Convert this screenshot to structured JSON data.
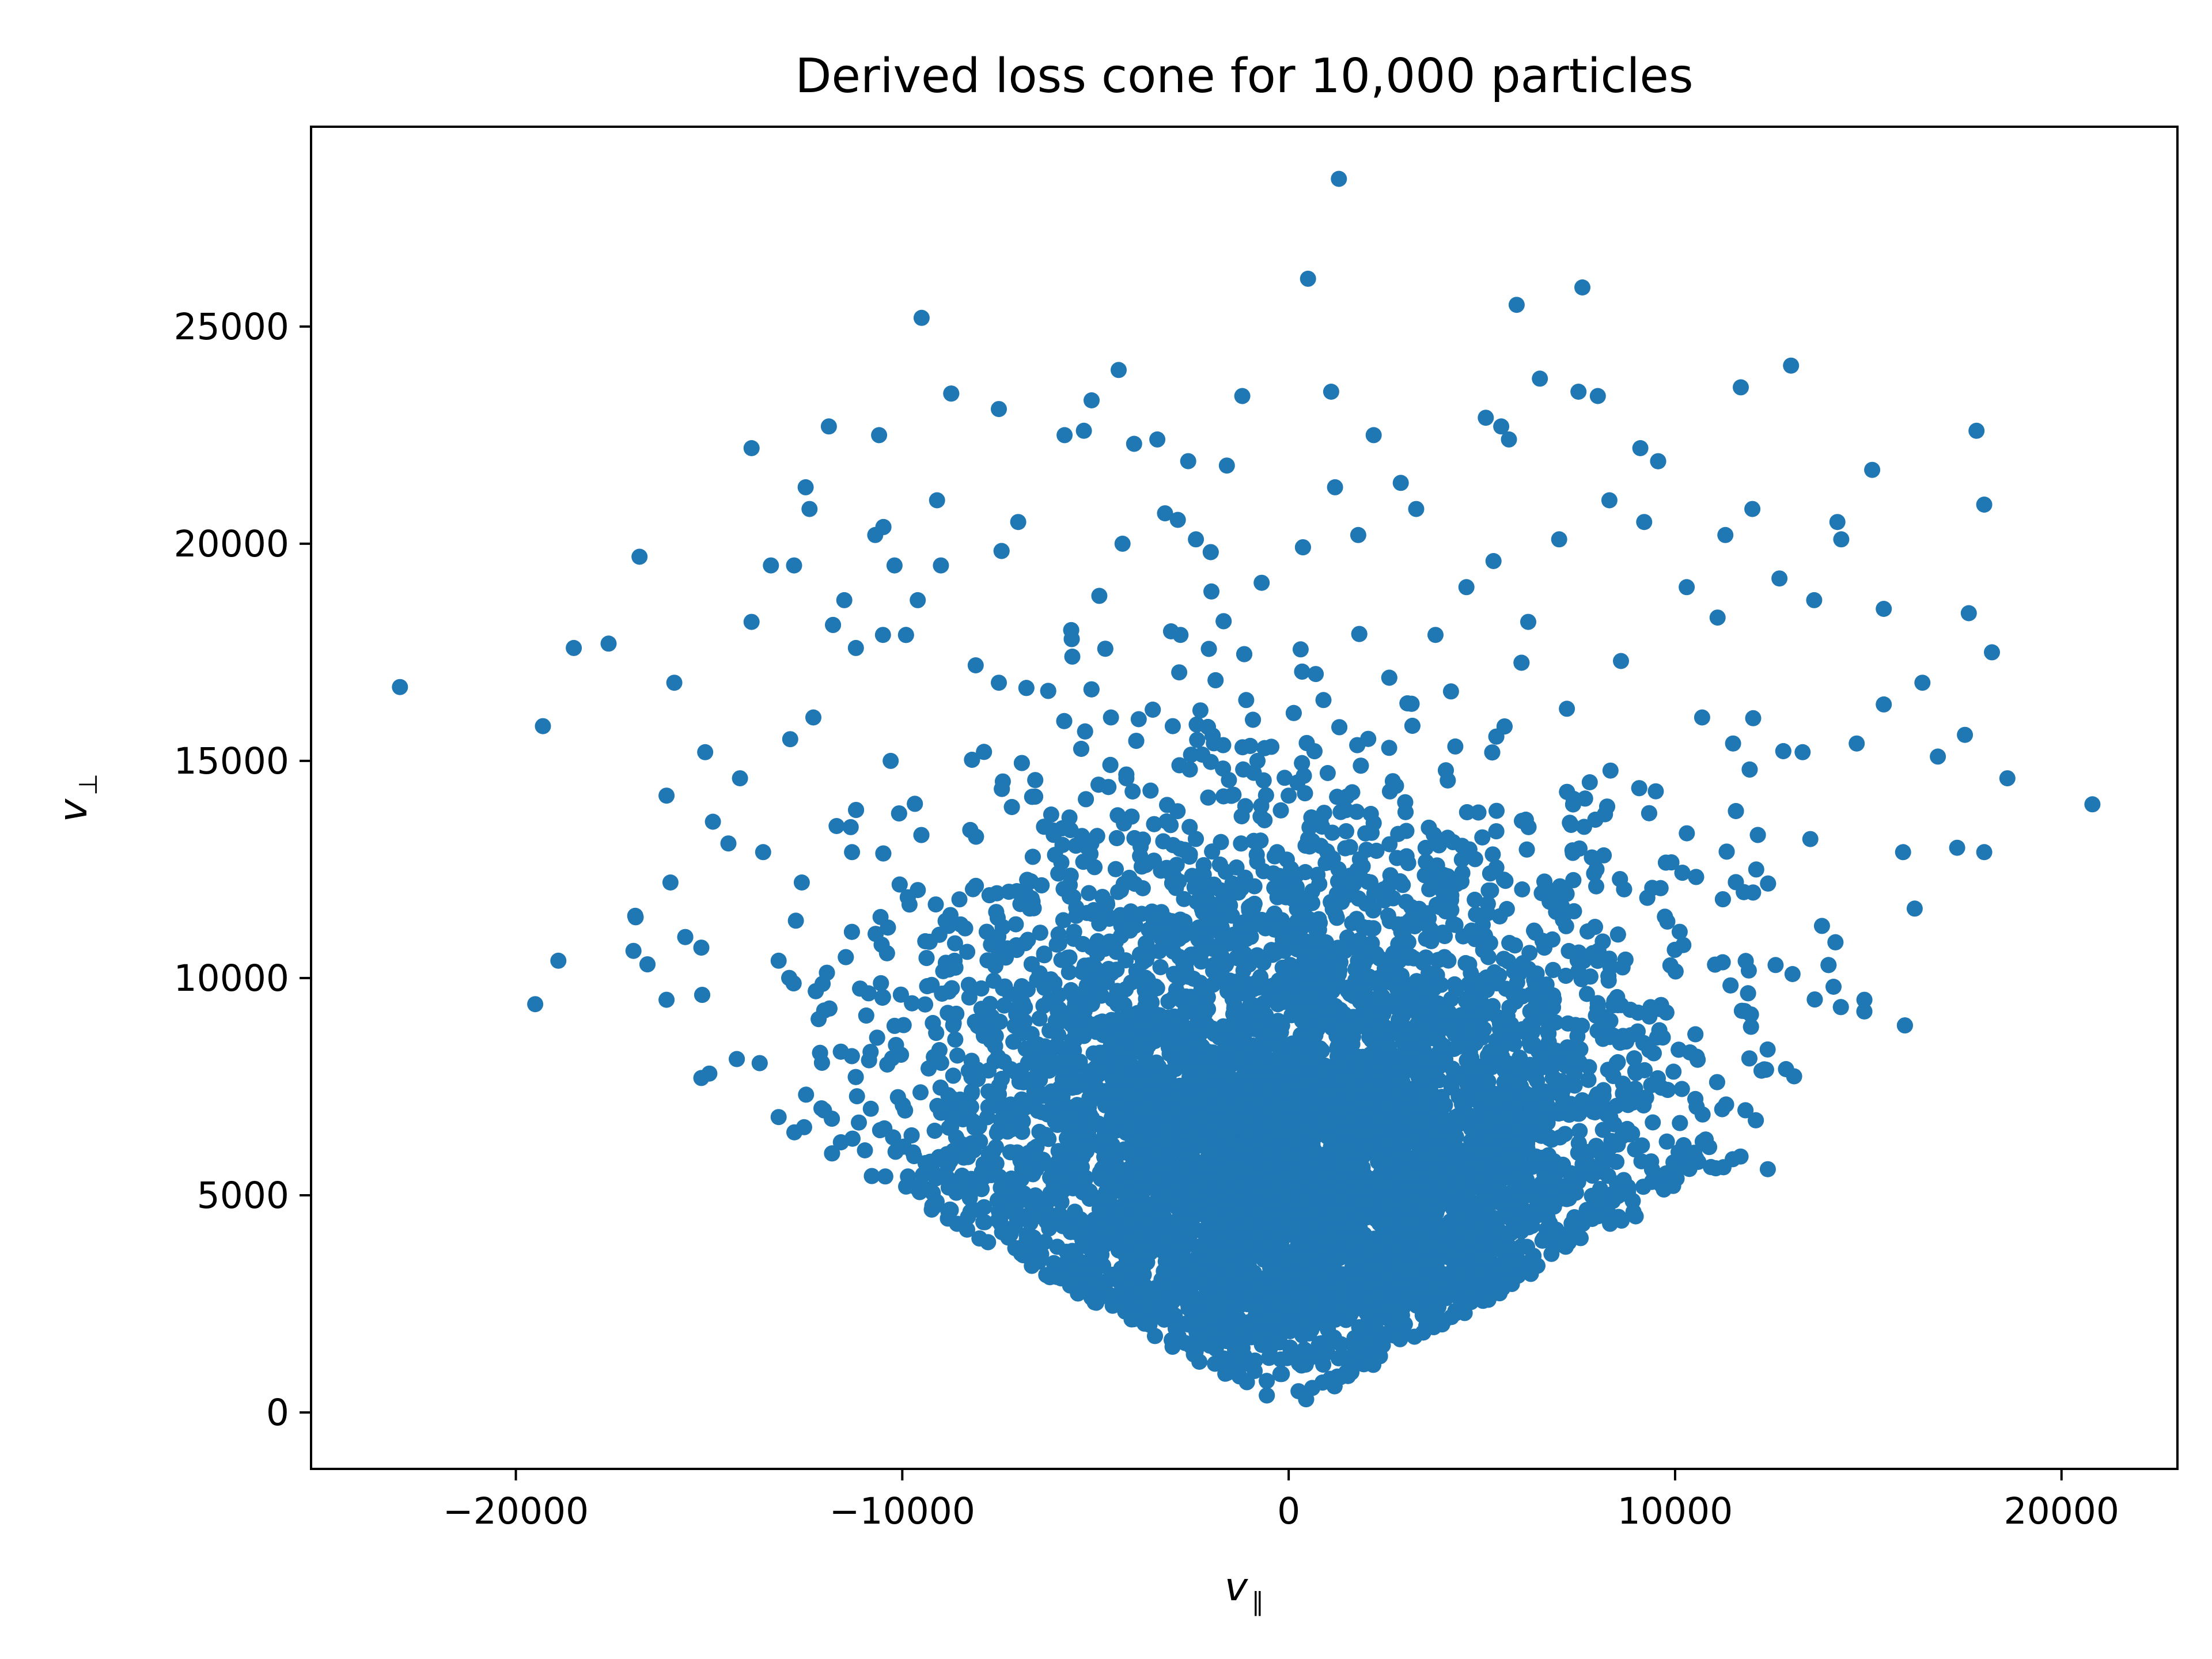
{
  "chart_data": {
    "type": "scatter",
    "title": "Derived loss cone for 10,000 particles",
    "xlabel": "v",
    "xlabel_subscript": "∥",
    "ylabel": "v",
    "ylabel_subscript": "⊥",
    "xlim": [
      -25300,
      23000
    ],
    "ylim": [
      -1300,
      29600
    ],
    "xticks": [
      -20000,
      -10000,
      0,
      10000,
      20000
    ],
    "xtick_labels": [
      "−20000",
      "−10000",
      "0",
      "10000",
      "20000"
    ],
    "yticks": [
      0,
      5000,
      10000,
      15000,
      20000,
      25000
    ],
    "ytick_labels": [
      "0",
      "5000",
      "10000",
      "15000",
      "20000",
      "25000"
    ],
    "grid": false,
    "legend": "none",
    "marker_color": "#1f77b4",
    "series": [
      {
        "count": 10000,
        "points": [
          [
            -23000,
            16700
          ],
          [
            -19300,
            15800
          ],
          [
            -18500,
            17600
          ],
          [
            -17600,
            17700
          ],
          [
            -16800,
            19700
          ],
          [
            -19500,
            9400
          ],
          [
            -18900,
            10400
          ],
          [
            -16900,
            11400
          ],
          [
            -16100,
            14200
          ],
          [
            -16000,
            12200
          ],
          [
            -15900,
            16800
          ],
          [
            -16100,
            9500
          ],
          [
            -15200,
            7700
          ],
          [
            -15200,
            10700
          ],
          [
            -15100,
            15200
          ],
          [
            -14900,
            13600
          ],
          [
            -14500,
            13100
          ],
          [
            -14200,
            14600
          ],
          [
            -13900,
            22200
          ],
          [
            -13900,
            18200
          ],
          [
            -13600,
            12900
          ],
          [
            -13400,
            19500
          ],
          [
            -13200,
            10400
          ],
          [
            -13200,
            6800
          ],
          [
            -12900,
            15500
          ],
          [
            -12800,
            19500
          ],
          [
            -12600,
            12200
          ],
          [
            -12500,
            21300
          ],
          [
            -12400,
            20800
          ],
          [
            -12300,
            16000
          ],
          [
            -11900,
            22700
          ],
          [
            -11700,
            13500
          ],
          [
            -11500,
            18700
          ],
          [
            -11300,
            12900
          ],
          [
            -11200,
            17600
          ],
          [
            -10700,
            20200
          ],
          [
            -10600,
            22500
          ],
          [
            -10500,
            17900
          ],
          [
            -10300,
            15000
          ],
          [
            -10200,
            19500
          ],
          [
            -9900,
            5200
          ],
          [
            -9500,
            25200
          ],
          [
            -9600,
            18700
          ],
          [
            -9100,
            21000
          ],
          [
            -9000,
            19500
          ],
          [
            -8800,
            11200
          ],
          [
            -8300,
            4500
          ],
          [
            -8100,
            17200
          ],
          [
            -7700,
            5600
          ],
          [
            -7500,
            23100
          ],
          [
            -7500,
            16800
          ],
          [
            -7200,
            4100
          ],
          [
            -7000,
            20500
          ],
          [
            -6700,
            11600
          ],
          [
            -6100,
            13400
          ],
          [
            -5800,
            22500
          ],
          [
            -5600,
            17400
          ],
          [
            -5300,
            22600
          ],
          [
            -5100,
            23300
          ],
          [
            -4900,
            18800
          ],
          [
            -4600,
            16000
          ],
          [
            -4400,
            24000
          ],
          [
            -4300,
            20000
          ],
          [
            -4200,
            14600
          ],
          [
            -4000,
            22300
          ],
          [
            -3700,
            10800
          ],
          [
            -3400,
            22400
          ],
          [
            -3200,
            20700
          ],
          [
            -3000,
            15800
          ],
          [
            -2800,
            17900
          ],
          [
            -2600,
            21900
          ],
          [
            -2400,
            20100
          ],
          [
            -2200,
            12600
          ],
          [
            -2000,
            18900
          ],
          [
            -1800,
            11700
          ],
          [
            -1600,
            21800
          ],
          [
            -1200,
            23400
          ],
          [
            -1100,
            16400
          ],
          [
            -900,
            8200
          ],
          [
            -700,
            19100
          ],
          [
            -500,
            4800
          ],
          [
            -300,
            12900
          ],
          [
            0,
            14200
          ],
          [
            200,
            9800
          ],
          [
            500,
            26100
          ],
          [
            700,
            17000
          ],
          [
            1100,
            23500
          ],
          [
            1200,
            21300
          ],
          [
            1300,
            28400
          ],
          [
            1500,
            11900
          ],
          [
            1800,
            20200
          ],
          [
            2200,
            22500
          ],
          [
            2600,
            15300
          ],
          [
            2900,
            21400
          ],
          [
            3300,
            20800
          ],
          [
            3800,
            17900
          ],
          [
            4200,
            16600
          ],
          [
            4600,
            19000
          ],
          [
            5100,
            22900
          ],
          [
            5300,
            19600
          ],
          [
            5500,
            22700
          ],
          [
            5700,
            22400
          ],
          [
            5900,
            25500
          ],
          [
            6200,
            18200
          ],
          [
            6500,
            23800
          ],
          [
            7000,
            20100
          ],
          [
            7200,
            16200
          ],
          [
            7600,
            25900
          ],
          [
            7500,
            23500
          ],
          [
            8000,
            23400
          ],
          [
            8300,
            21000
          ],
          [
            8600,
            17300
          ],
          [
            9100,
            22200
          ],
          [
            9200,
            20500
          ],
          [
            9500,
            14300
          ],
          [
            9800,
            11300
          ],
          [
            10300,
            19000
          ],
          [
            10700,
            16000
          ],
          [
            11100,
            18300
          ],
          [
            11300,
            20200
          ],
          [
            11500,
            15400
          ],
          [
            11700,
            23600
          ],
          [
            12000,
            20800
          ],
          [
            12100,
            12500
          ],
          [
            12400,
            5600
          ],
          [
            12600,
            10300
          ],
          [
            12700,
            19200
          ],
          [
            13000,
            24100
          ],
          [
            13300,
            15200
          ],
          [
            13500,
            13200
          ],
          [
            13600,
            18700
          ],
          [
            13800,
            11200
          ],
          [
            14100,
            9800
          ],
          [
            14200,
            20500
          ],
          [
            14300,
            20100
          ],
          [
            14700,
            15400
          ],
          [
            14900,
            9500
          ],
          [
            15100,
            21700
          ],
          [
            15400,
            18500
          ],
          [
            15400,
            16300
          ],
          [
            15900,
            12900
          ],
          [
            16200,
            11600
          ],
          [
            16400,
            16800
          ],
          [
            16800,
            15100
          ],
          [
            17300,
            13000
          ],
          [
            17500,
            15600
          ],
          [
            17600,
            18400
          ],
          [
            17800,
            22600
          ],
          [
            18000,
            20900
          ],
          [
            18000,
            12900
          ],
          [
            18200,
            17500
          ],
          [
            18600,
            14600
          ],
          [
            20800,
            14000
          ]
        ]
      }
    ]
  }
}
